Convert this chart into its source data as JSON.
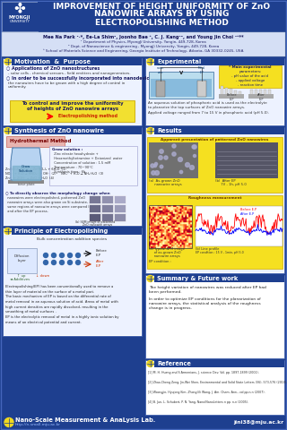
{
  "title_line1": "IMPROVEMENT OF HEIGHT UNIFORMITY OF ZnO",
  "title_line2": "NANOWIRE ARRAYS BY USING",
  "title_line3": "ELECTROPOLISHING METHOD",
  "title_bg": "#1e3f8f",
  "title_text_color": "#ffffff",
  "authors": "Mee Na Park ¹·*, Ee-La Shim², Joonho Bae ³, C. J. Kang¹², and Young Jin Choi ¹³**",
  "affil1": "¹ Department of Physics, MyongJi University, Yongin, 449-728, Korea",
  "affil2": "² Dept. of Nanoscience & engineering , MyongJi University, Yongin, 449-728, Korea",
  "affil3": "³ School of Materials Science and Engineering, Georgia Institute of Technology, Atlanta, GA 30332-0245, USA",
  "affil_bg": "#d5dff5",
  "section_header_bg": "#1e3f8f",
  "section_border": "#3355aa",
  "footer_bg": "#1e3f8f",
  "footer_text1": "Nano-Scale Measurement & AnaLysis Lab.",
  "footer_text2": "http://n-small.mju.ac.kr",
  "footer_email": "jini38@mju.ac.kr",
  "poster_bg": "#1e3f8f",
  "accent_yellow": "#f0d820",
  "content_bg": "#edf2ff"
}
